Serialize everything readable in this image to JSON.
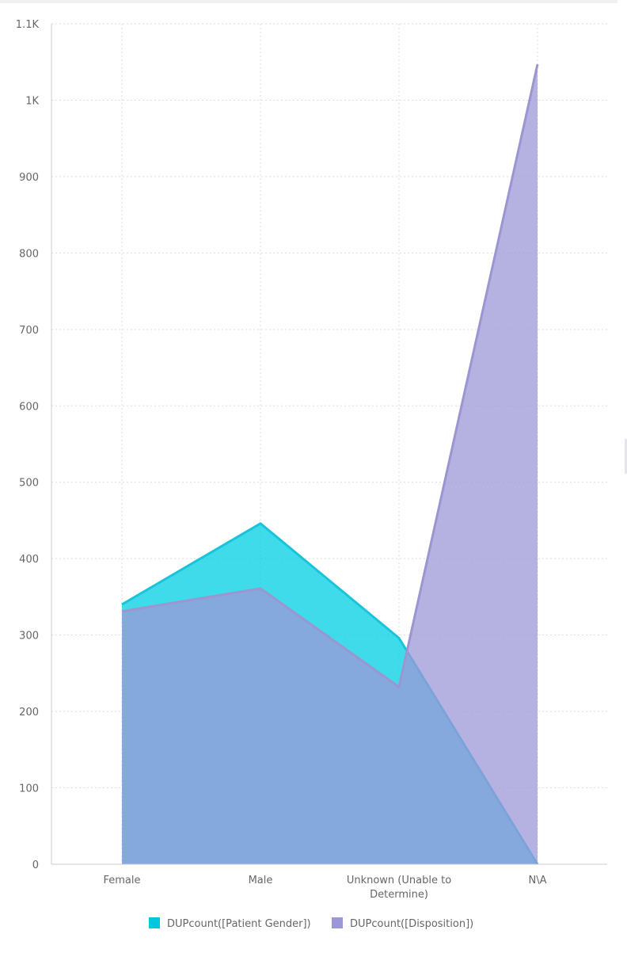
{
  "chart_data": {
    "type": "area",
    "title": "",
    "xlabel": "",
    "ylabel": "",
    "categories": [
      "Female",
      "Male",
      "Unknown (Unable to Determine)",
      "N\\A"
    ],
    "category_label_lines": [
      [
        "Female"
      ],
      [
        "Male"
      ],
      [
        "Unknown (Unable to",
        "Determine)"
      ],
      [
        "N\\A"
      ]
    ],
    "ylim": [
      0,
      1100
    ],
    "yticks": [
      0,
      100,
      200,
      300,
      400,
      500,
      600,
      700,
      800,
      900,
      1000,
      1100
    ],
    "ytick_labels": [
      "0",
      "100",
      "200",
      "300",
      "400",
      "500",
      "600",
      "700",
      "800",
      "900",
      "1K",
      "1.1K"
    ],
    "grid": true,
    "legend_position": "bottom",
    "series": [
      {
        "name": "DUPcount([Patient Gender])",
        "values": [
          340,
          446,
          296,
          0
        ],
        "color": "#00c8dc"
      },
      {
        "name": "DUPcount([Disposition])",
        "values": [
          331,
          361,
          232,
          1047
        ],
        "color": "#8d89cc"
      }
    ]
  },
  "colors": {
    "series_1_line": "#19c4da",
    "series_1_fill": "#00cfe4",
    "series_2_line": "#9a96d2",
    "series_2_fill": "#9c98d8",
    "axis": "#cccccc",
    "grid": "#dddddd",
    "text": "#666666"
  }
}
